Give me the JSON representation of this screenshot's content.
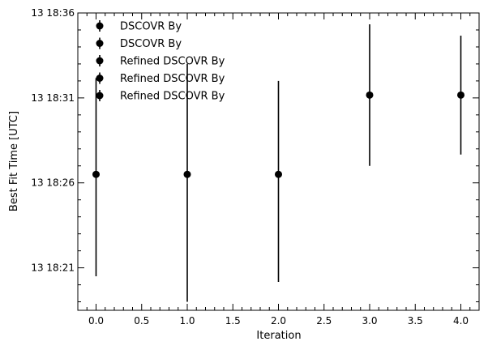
{
  "chart_data": {
    "type": "scatter",
    "xlabel": "Iteration",
    "ylabel": "Best Fit Time [UTC]",
    "x_ticks": [
      0.0,
      0.5,
      1.0,
      1.5,
      2.0,
      2.5,
      3.0,
      3.5,
      4.0
    ],
    "x_tick_labels": [
      "0.0",
      "0.5",
      "1.0",
      "1.5",
      "2.0",
      "2.5",
      "3.0",
      "3.5",
      "4.0"
    ],
    "y_ticks": [
      "18:21",
      "18:26",
      "18:31",
      "18:36"
    ],
    "y_tick_labels": [
      "13 18:21",
      "13 18:26",
      "13 18:31",
      "13 18:36"
    ],
    "xlim": [
      -0.2,
      4.2
    ],
    "ylim": [
      "18:18:30",
      "18:36:00"
    ],
    "grid": false,
    "legend_position": "top-left",
    "series": [
      {
        "name": "DSCOVR By",
        "x": [
          0
        ],
        "y": [
          "18:26:30"
        ],
        "yerr_low": [
          "18:20:30"
        ],
        "yerr_high": [
          "18:32:10"
        ]
      },
      {
        "name": "DSCOVR By",
        "x": [
          1
        ],
        "y": [
          "18:26:30"
        ],
        "yerr_low": [
          "18:19:00"
        ],
        "yerr_high": [
          "18:33:00"
        ]
      },
      {
        "name": "Refined DSCOVR By",
        "x": [
          2
        ],
        "y": [
          "18:26:30"
        ],
        "yerr_low": [
          "18:20:10"
        ],
        "yerr_high": [
          "18:32:00"
        ]
      },
      {
        "name": "Refined DSCOVR By",
        "x": [
          3
        ],
        "y": [
          "18:31:10"
        ],
        "yerr_low": [
          "18:27:00"
        ],
        "yerr_high": [
          "18:35:20"
        ]
      },
      {
        "name": "Refined DSCOVR By",
        "x": [
          4
        ],
        "y": [
          "18:31:10"
        ],
        "yerr_low": [
          "18:27:40"
        ],
        "yerr_high": [
          "18:34:40"
        ]
      }
    ],
    "colors": {
      "marker": "#000000",
      "errorbar": "#000000"
    }
  }
}
